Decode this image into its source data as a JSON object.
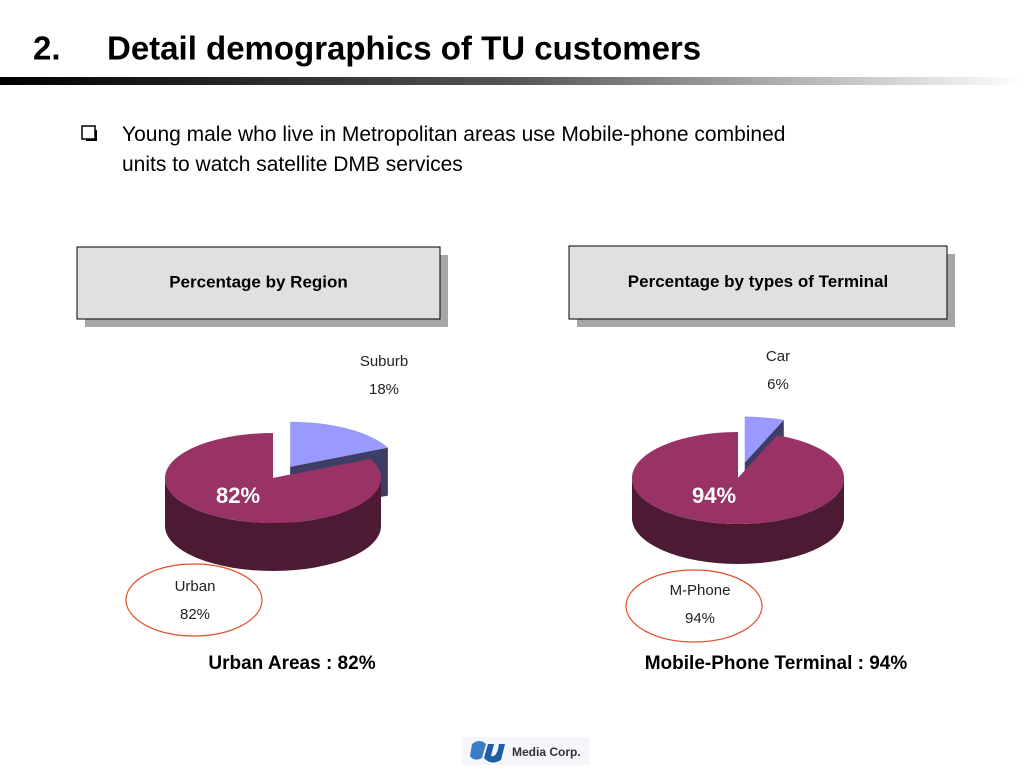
{
  "slide": {
    "number": "2.",
    "title": "Detail demographics of TU customers",
    "bullet": "Young male who live in Metropolitan areas use Mobile-phone combined units to watch satellite DMB services",
    "logo": "Media Corp."
  },
  "chart_data": [
    {
      "type": "pie",
      "title": "Percentage by Region",
      "categories": [
        "Urban",
        "Suburb"
      ],
      "values": [
        82,
        18
      ],
      "value_labels": [
        "82%",
        "18%"
      ],
      "colors": [
        "#993366",
        "#9999ff"
      ],
      "exploded": [
        false,
        true
      ],
      "highlighted": [
        true,
        false
      ],
      "caption": "Urban Areas : 82%"
    },
    {
      "type": "pie",
      "title": "Percentage by types of Terminal",
      "categories": [
        "M-Phone",
        "Car"
      ],
      "values": [
        94,
        6
      ],
      "value_labels": [
        "94%",
        "6%"
      ],
      "colors": [
        "#993366",
        "#9999ff"
      ],
      "exploded": [
        false,
        true
      ],
      "highlighted": [
        true,
        false
      ],
      "caption": "Mobile-Phone Terminal : 94%"
    }
  ]
}
